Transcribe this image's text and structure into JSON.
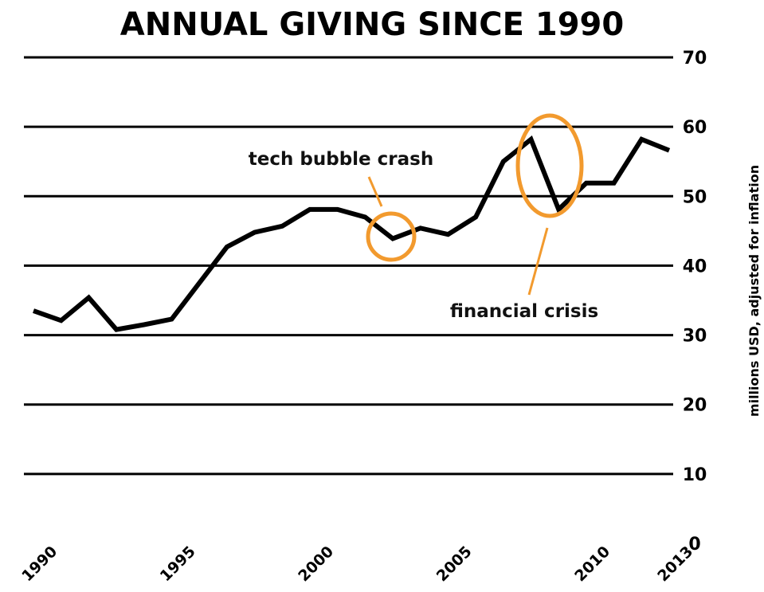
{
  "chart_data": {
    "type": "line",
    "title": "ANNUAL GIVING SINCE 1990",
    "xlabel": "",
    "ylabel": "millions USD, adjusted for inflation",
    "x": [
      1990,
      1991,
      1992,
      1993,
      1994,
      1995,
      1996,
      1997,
      1998,
      1999,
      2000,
      2001,
      2002,
      2003,
      2004,
      2005,
      2006,
      2007,
      2008,
      2009,
      2010,
      2011,
      2012,
      2013
    ],
    "values": [
      33.5,
      32.1,
      35.4,
      30.8,
      31.5,
      32.3,
      37.5,
      42.7,
      44.8,
      45.7,
      48.1,
      48.1,
      47.0,
      43.9,
      45.4,
      44.5,
      47.0,
      55.0,
      58.2,
      48.1,
      51.9,
      51.9,
      58.2,
      56.6
    ],
    "xlim": [
      1990,
      2013
    ],
    "ylim": [
      0,
      70
    ],
    "x_tick_labels": [
      "1990",
      "1995",
      "2000",
      "2005",
      "2010",
      "2013"
    ],
    "y_tick_labels": [
      "0",
      "10",
      "20",
      "30",
      "40",
      "50",
      "60",
      "70"
    ],
    "y_axis_side": "right",
    "grid": true,
    "line_color": "#000000",
    "annotation_color": "#F29A2E",
    "annotations": [
      {
        "text": "tech bubble crash",
        "x": 2003,
        "y": 44.5,
        "shape": "circle"
      },
      {
        "text": "financial crisis",
        "x": 2008.5,
        "y": 54,
        "shape": "ellipse"
      }
    ]
  }
}
